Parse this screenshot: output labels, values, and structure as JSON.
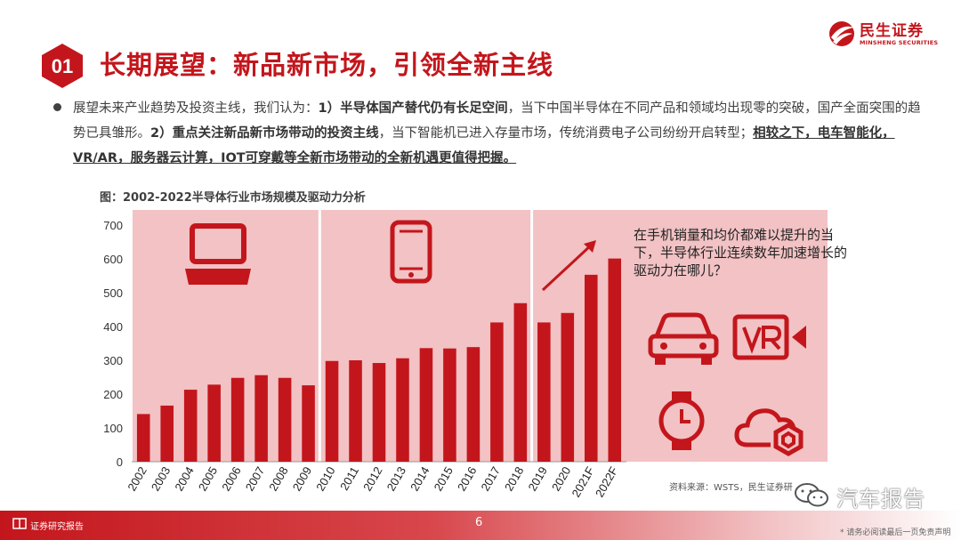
{
  "header": {
    "badge_number": "01",
    "title": "长期展望：新品新市场，引领全新主线",
    "brand_cn": "民生证券",
    "brand_en": "MINSHENG SECURITIES",
    "brand_color": "#c3161c"
  },
  "bullet": {
    "p1": "展望未来产业趋势及投资主线，我们认为：",
    "b1": "1）半导体国产替代仍有长足空间",
    "p2": "，当下中国半导体在不同产品和领域均出现零的突破，国产全面突围的趋势已具雏形。",
    "b2": "2）重点关注新品新市场带动的投资主线",
    "p3": "，当下智能机已进入存量市场，传统消费电子公司纷纷开启转型；",
    "u1": "相较之下，电车智能化，VR/AR，服务器云计算，IOT可穿戴等全新市场带动的全新机遇更值得把握。"
  },
  "figure": {
    "caption": "图：2002-2022半导体行业市场规模及驱动力分析",
    "question": "在手机销量和均价都难以提升的当下，半导体行业连续数年加速增长的驱动力在哪儿？",
    "source": "资料来源：WSTS，民生证券研"
  },
  "chart_data": {
    "type": "bar",
    "categories": [
      "2002",
      "2003",
      "2004",
      "2005",
      "2006",
      "2007",
      "2008",
      "2009",
      "2010",
      "2011",
      "2012",
      "2013",
      "2014",
      "2015",
      "2016",
      "2017",
      "2018",
      "2019",
      "2020",
      "2021F",
      "2022F"
    ],
    "values": [
      141,
      166,
      213,
      228,
      248,
      256,
      248,
      226,
      298,
      300,
      292,
      306,
      336,
      335,
      339,
      412,
      469,
      412,
      440,
      553,
      601
    ],
    "ylim": [
      0,
      700
    ],
    "yticks": [
      "0",
      "100",
      "200",
      "300",
      "400",
      "500",
      "600",
      "700"
    ],
    "bar_color": "#c3161c",
    "band_color": "#f2c2c4",
    "driver_icons": [
      "laptop-icon",
      "smartphone-icon",
      "car-icon",
      "vr-icon",
      "smartwatch-icon",
      "cloud-icon"
    ]
  },
  "footer": {
    "label": "证券研究报告",
    "page": "6",
    "disclaimer": "* 请务必阅读最后一页免责声明",
    "watermark": "汽车报告"
  }
}
